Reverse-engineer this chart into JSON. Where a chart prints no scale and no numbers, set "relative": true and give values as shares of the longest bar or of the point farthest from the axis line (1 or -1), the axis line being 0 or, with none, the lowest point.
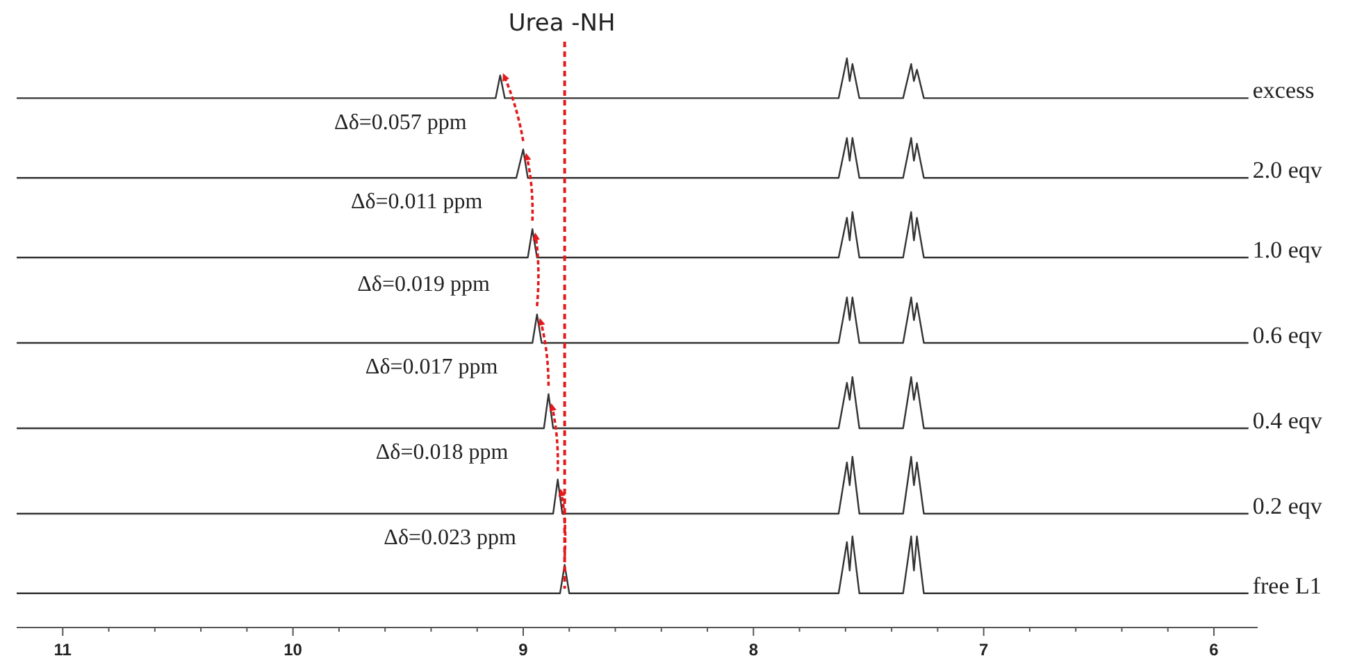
{
  "chart_data": {
    "type": "line",
    "relative": true,
    "xlim": [
      11.2,
      5.81
    ],
    "xticks": [
      11,
      {
        "value": 10.8,
        "label": null
      },
      {
        "value": 10.6,
        "label": null
      },
      {
        "value": 10.4,
        "label": null
      },
      {
        "value": 10.2,
        "label": null
      },
      10,
      {
        "value": 9.8,
        "label": null
      },
      {
        "value": 9.6,
        "label": null
      },
      {
        "value": 9.4,
        "label": null
      },
      {
        "value": 9.2,
        "label": null
      },
      9,
      {
        "value": 8.8,
        "label": null
      },
      {
        "value": 8.6,
        "label": null
      },
      {
        "value": 8.4,
        "label": null
      },
      {
        "value": 8.2,
        "label": null
      },
      8,
      {
        "value": 7.8,
        "label": null
      },
      {
        "value": 7.6,
        "label": null
      },
      {
        "value": 7.4,
        "label": null
      },
      {
        "value": 7.2,
        "label": null
      },
      7,
      {
        "value": 6.8,
        "label": null
      },
      {
        "value": 6.6,
        "label": null
      },
      {
        "value": 6.4,
        "label": null
      },
      {
        "value": 6.2,
        "label": null
      },
      6
    ],
    "series": [
      {
        "name": "excess",
        "color": "#333333",
        "x": [
          11.2,
          9.12,
          9.1,
          9.08,
          7.63,
          7.594,
          7.582,
          7.57,
          7.54,
          7.35,
          7.315,
          7.303,
          7.29,
          7.26,
          5.85
        ],
        "values": [
          0.93,
          0.93,
          0.97,
          0.93,
          0.93,
          1.0,
          0.96,
          0.99,
          0.93,
          0.93,
          0.99,
          0.96,
          0.98,
          0.93,
          0.93
        ]
      },
      {
        "name": "2.0 eqv",
        "color": "#333333",
        "x": [
          11.2,
          9.03,
          9.0,
          8.98,
          7.63,
          7.594,
          7.582,
          7.57,
          7.54,
          7.35,
          7.315,
          7.303,
          7.29,
          7.26,
          5.85
        ],
        "values": [
          0.79,
          0.79,
          0.84,
          0.79,
          0.79,
          0.86,
          0.82,
          0.86,
          0.79,
          0.79,
          0.86,
          0.82,
          0.85,
          0.79,
          0.79
        ]
      },
      {
        "name": "1.0 eqv",
        "color": "#333333",
        "x": [
          11.2,
          8.98,
          8.96,
          8.94,
          7.63,
          7.594,
          7.582,
          7.57,
          7.54,
          7.35,
          7.315,
          7.303,
          7.29,
          7.26,
          5.85
        ],
        "values": [
          0.65,
          0.65,
          0.7,
          0.65,
          0.65,
          0.72,
          0.68,
          0.73,
          0.65,
          0.65,
          0.73,
          0.68,
          0.72,
          0.65,
          0.65
        ]
      },
      {
        "name": "0.6 eqv",
        "color": "#333333",
        "x": [
          11.2,
          8.96,
          8.94,
          8.92,
          7.63,
          7.594,
          7.582,
          7.57,
          7.54,
          7.35,
          7.315,
          7.303,
          7.29,
          7.26,
          5.85
        ],
        "values": [
          0.5,
          0.5,
          0.55,
          0.5,
          0.5,
          0.58,
          0.54,
          0.58,
          0.5,
          0.5,
          0.58,
          0.54,
          0.57,
          0.5,
          0.5
        ]
      },
      {
        "name": "0.4 eqv",
        "color": "#333333",
        "x": [
          11.2,
          8.91,
          8.89,
          8.87,
          7.63,
          7.594,
          7.582,
          7.57,
          7.54,
          7.35,
          7.315,
          7.303,
          7.29,
          7.26,
          5.85
        ],
        "values": [
          0.35,
          0.35,
          0.41,
          0.35,
          0.35,
          0.43,
          0.4,
          0.44,
          0.35,
          0.35,
          0.44,
          0.4,
          0.43,
          0.35,
          0.35
        ]
      },
      {
        "name": "0.2 eqv",
        "color": "#333333",
        "x": [
          11.2,
          8.87,
          8.85,
          8.83,
          7.63,
          7.594,
          7.582,
          7.57,
          7.54,
          7.35,
          7.315,
          7.303,
          7.29,
          7.26,
          5.85
        ],
        "values": [
          0.2,
          0.2,
          0.26,
          0.2,
          0.2,
          0.29,
          0.25,
          0.3,
          0.2,
          0.2,
          0.3,
          0.25,
          0.29,
          0.2,
          0.2
        ]
      },
      {
        "name": "free L1",
        "color": "#333333",
        "x": [
          11.2,
          8.84,
          8.82,
          8.8,
          7.63,
          7.594,
          7.582,
          7.57,
          7.54,
          7.35,
          7.315,
          7.303,
          7.29,
          7.26,
          5.85
        ],
        "values": [
          0.06,
          0.06,
          0.11,
          0.06,
          0.06,
          0.15,
          0.1,
          0.16,
          0.06,
          0.06,
          0.16,
          0.1,
          0.16,
          0.06,
          0.06
        ]
      }
    ],
    "ref_lines": [
      {
        "axis": "x",
        "value": 8.82,
        "label": "Urea -NH",
        "color": "#e31a1c",
        "line_style": "dashed"
      }
    ],
    "annotations": [
      "Δδ=0.057 ppm",
      "Δδ=0.011 ppm",
      "Δδ=0.019 ppm",
      "Δδ=0.017 ppm",
      "Δδ=0.018 ppm",
      "Δδ=0.023 ppm"
    ]
  }
}
